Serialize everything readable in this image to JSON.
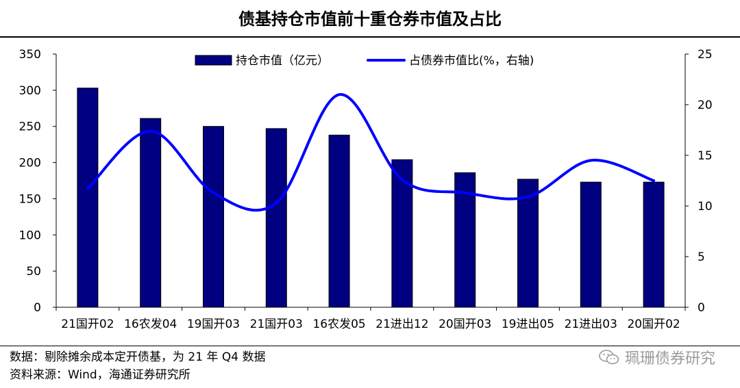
{
  "title": "债基持仓市值前十重仓券市值及占比",
  "chart_data": {
    "type": "bar+line",
    "categories": [
      "21国开02",
      "16农发04",
      "19国开03",
      "21国开03",
      "16农发05",
      "21进出12",
      "20国开03",
      "19进出05",
      "21进出03",
      "20国开02"
    ],
    "series": [
      {
        "name": "持仓市值（亿元）",
        "type": "bar",
        "axis": "left",
        "values": [
          303,
          261,
          250,
          247,
          238,
          204,
          186,
          177,
          173,
          173
        ]
      },
      {
        "name": "占债券市值比(%，右轴)",
        "type": "line",
        "axis": "right",
        "values": [
          11.7,
          17.4,
          11.3,
          10.3,
          21.0,
          12.6,
          11.3,
          10.9,
          14.5,
          12.5
        ]
      }
    ],
    "y_left": {
      "range": [
        0,
        350
      ],
      "ticks": [
        "0",
        "50",
        "100",
        "150",
        "200",
        "250",
        "300",
        "350"
      ]
    },
    "y_right": {
      "range": [
        0,
        25
      ],
      "ticks": [
        "0",
        "5",
        "10",
        "15",
        "20",
        "25"
      ]
    },
    "colors": {
      "bar": "#000080",
      "line": "#0000ff"
    },
    "legend_position": "top",
    "grid": false
  },
  "footnotes": {
    "line1": "数据：剔除摊余成本定开债基，为 21 年 Q4 数据",
    "line2": "资料来源：Wind，海通证券研究所"
  },
  "watermark": "珮珊债券研究"
}
